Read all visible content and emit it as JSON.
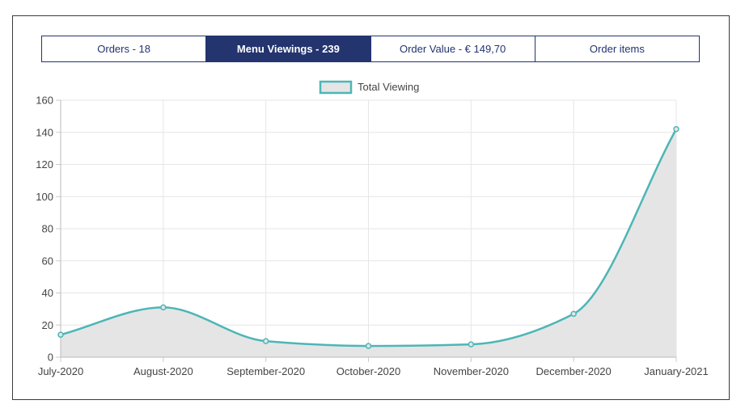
{
  "tabs": [
    {
      "label": "Orders - 18",
      "active": false
    },
    {
      "label": "Menu Viewings - 239",
      "active": true
    },
    {
      "label": "Order Value - € 149,70",
      "active": false
    },
    {
      "label": "Order items",
      "active": false
    }
  ],
  "colors": {
    "accent": "#23346e",
    "line": "#4db6b6",
    "fill": "#e5e5e5",
    "grid": "#e6e6e6"
  },
  "chart_data": {
    "type": "area",
    "title": "",
    "xlabel": "",
    "ylabel": "",
    "categories": [
      "July-2020",
      "August-2020",
      "September-2020",
      "October-2020",
      "November-2020",
      "December-2020",
      "January-2021"
    ],
    "series": [
      {
        "name": "Total Viewing",
        "values": [
          14,
          31,
          10,
          7,
          8,
          27,
          142
        ]
      }
    ],
    "ylim": [
      0,
      160
    ],
    "yticks": [
      0,
      20,
      40,
      60,
      80,
      100,
      120,
      140,
      160
    ],
    "grid": true,
    "legend_position": "top-center"
  }
}
